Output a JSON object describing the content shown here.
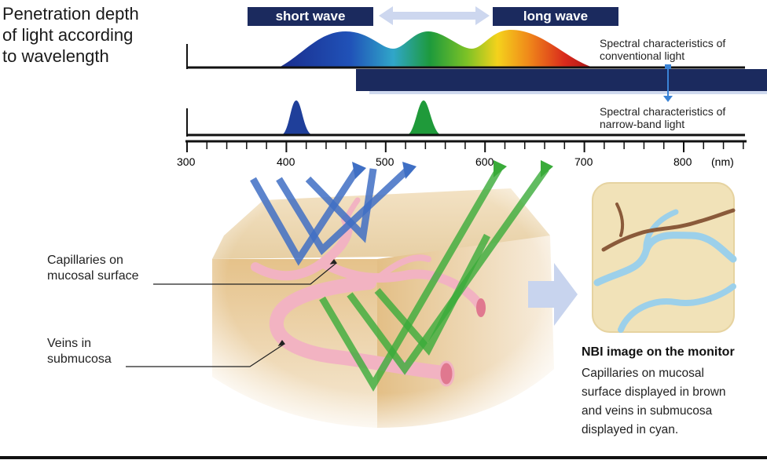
{
  "title": {
    "line1": "Penetration depth",
    "line2": "of light according",
    "line3": "to wavelength"
  },
  "labels": {
    "short_wave": "short wave",
    "long_wave": "long wave",
    "conventional_line1": "Spectral characteristics of",
    "conventional_line2": "conventional light",
    "narrow_line1": "Spectral characteristics of",
    "narrow_line2": "narrow-band light",
    "capillaries_line1": "Capillaries on",
    "capillaries_line2": "mucosal surface",
    "veins_line1": "Veins in",
    "veins_line2": "submucosa"
  },
  "axis": {
    "unit": "(nm)",
    "ticks": [
      "300",
      "400",
      "500",
      "600",
      "700",
      "800"
    ]
  },
  "nbi": {
    "title": "NBI image on the monitor",
    "desc_line1": "Capillaries on mucosal",
    "desc_line2": "surface displayed in brown",
    "desc_line3": "and veins in submucosa",
    "desc_line4": "displayed in cyan."
  },
  "colors": {
    "navy": "#1b2a5e",
    "blue_peak": "#1f3f9a",
    "green_peak": "#1f9a3a",
    "capillary_brown": "#8a5a3a",
    "vein_cyan": "#8fc8e6",
    "tissue": "#e9c99a"
  }
}
